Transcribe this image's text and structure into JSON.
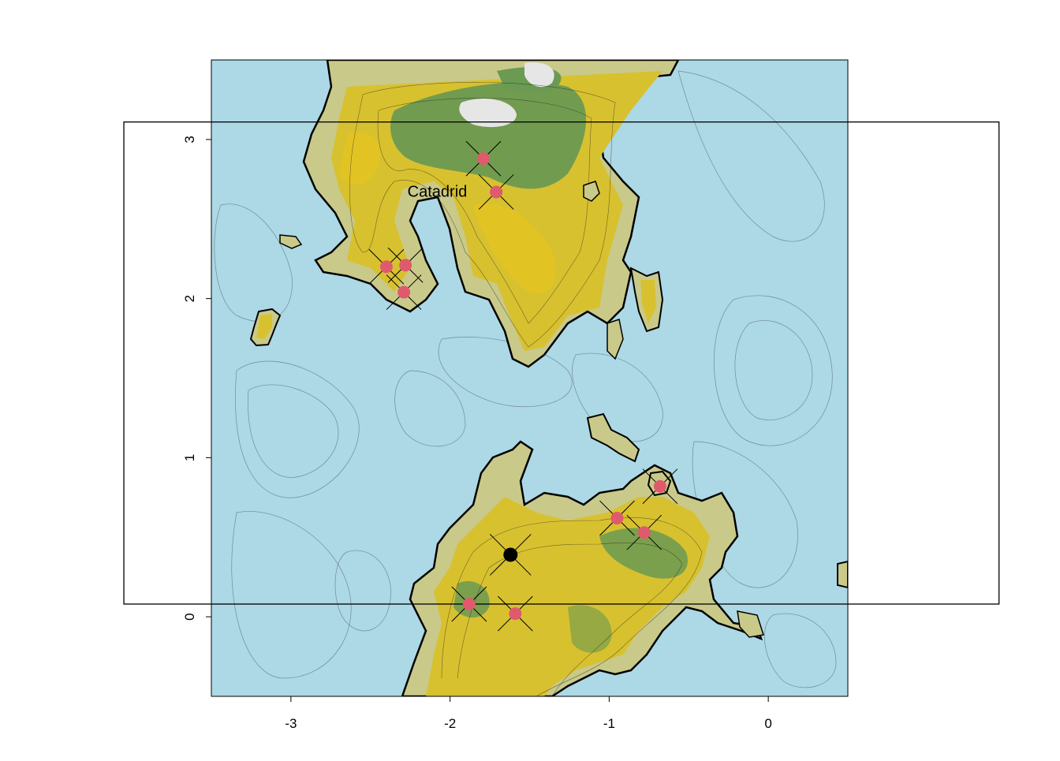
{
  "chart_data": {
    "type": "map",
    "xlim": [
      -3.5,
      0.5
    ],
    "ylim": [
      -0.5,
      3.5
    ],
    "x_ticks": [
      -3,
      -2,
      -1,
      0
    ],
    "x_tick_labels": [
      "-3",
      "-2",
      "-1",
      "0"
    ],
    "y_ticks": [
      0,
      1,
      2,
      3
    ],
    "y_tick_labels": [
      "0",
      "1",
      "2",
      "3"
    ],
    "frame_rect": {
      "x0": -4.05,
      "x1": 1.45,
      "y0": 0.08,
      "y1": 3.11
    },
    "colors": {
      "water": "#add8e6",
      "lowland": "#c9c98a",
      "land": "#d8c12f",
      "forest": "#6b9a52",
      "peak": "#e6e6e6",
      "marker": "#e05a6e",
      "center": "#000000"
    },
    "labels": [
      {
        "text": "Catadrid",
        "x": -2.08,
        "y": 2.67
      }
    ],
    "markers": [
      {
        "x": -1.79,
        "y": 2.88
      },
      {
        "x": -1.71,
        "y": 2.67
      },
      {
        "x": -2.4,
        "y": 2.2
      },
      {
        "x": -2.28,
        "y": 2.21
      },
      {
        "x": -2.29,
        "y": 2.04
      },
      {
        "x": -0.95,
        "y": 0.62
      },
      {
        "x": -0.78,
        "y": 0.53
      },
      {
        "x": -0.68,
        "y": 0.82
      },
      {
        "x": -1.88,
        "y": 0.08
      },
      {
        "x": -1.59,
        "y": 0.02
      }
    ],
    "center_marker": {
      "x": -1.62,
      "y": 0.39
    }
  }
}
